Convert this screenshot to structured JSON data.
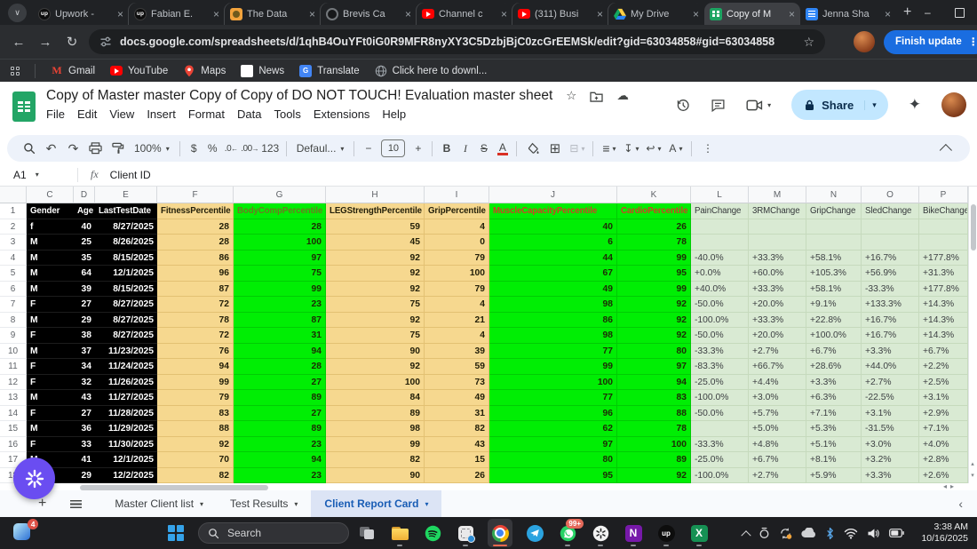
{
  "browser": {
    "tabs": [
      {
        "label": "Upwork -",
        "icon": "upwork"
      },
      {
        "label": "Fabian E.",
        "icon": "upwork"
      },
      {
        "label": "The Data",
        "icon": "emoji"
      },
      {
        "label": "Brevis Ca",
        "icon": "circle"
      },
      {
        "label": "Channel c",
        "icon": "youtube"
      },
      {
        "label": "(311) Busi",
        "icon": "youtube"
      },
      {
        "label": "My Drive",
        "icon": "drive"
      },
      {
        "label": "Copy of M",
        "icon": "sheets",
        "active": true
      },
      {
        "label": "Jenna Sha",
        "icon": "docs"
      }
    ],
    "url": "docs.google.com/spreadsheets/d/1qhB4OuYFt0iG0R9MFR8nyXY3C5DzbjBjC0zcGrEEMSk/edit?gid=63034858#gid=63034858",
    "profile_button": "Finish update",
    "bookmarks": [
      {
        "label": "Gmail",
        "icon": "gmail"
      },
      {
        "label": "YouTube",
        "icon": "youtube"
      },
      {
        "label": "Maps",
        "icon": "maps"
      },
      {
        "label": "News",
        "icon": "news"
      },
      {
        "label": "Translate",
        "icon": "translate"
      },
      {
        "label": "Click here to downl...",
        "icon": "globe"
      }
    ]
  },
  "sheet_app": {
    "doc_title": "Copy of Master master Copy of Copy of DO NOT TOUCH! Evaluation master sheet",
    "menu_items": [
      "File",
      "Edit",
      "View",
      "Insert",
      "Format",
      "Data",
      "Tools",
      "Extensions",
      "Help"
    ],
    "share_label": "Share",
    "toolbar": {
      "zoom": "100%",
      "font_name": "Defaul...",
      "font_size": "10",
      "number_format": "123"
    },
    "name_box": "A1",
    "formula_content": "Client ID",
    "sheet_tabs": [
      {
        "label": "Master Client list"
      },
      {
        "label": "Test Results"
      },
      {
        "label": "Client Report Card",
        "active": true
      }
    ]
  },
  "grid": {
    "row_numbers": [
      "1",
      "2",
      "3",
      "4",
      "5",
      "6",
      "7",
      "8",
      "9",
      "10",
      "11",
      "12",
      "13",
      "14",
      "15",
      "16",
      "17",
      "18"
    ],
    "columns": [
      {
        "letter": "C",
        "header": "Gender",
        "width": 53,
        "group": "black",
        "align": "left"
      },
      {
        "letter": "D",
        "header": "Age",
        "width": 24,
        "group": "black",
        "align": "right"
      },
      {
        "letter": "E",
        "header": "LastTestDate",
        "width": 70,
        "group": "black",
        "align": "right"
      },
      {
        "letter": "F",
        "header": "FitnessPercentile",
        "width": 86,
        "group": "tan",
        "align": "right"
      },
      {
        "letter": "G",
        "header": "BodyCompPercentile",
        "width": 104,
        "group": "green",
        "align": "right",
        "header_color": "#6d7a22"
      },
      {
        "letter": "H",
        "header": "LEGStrengthPercentile",
        "width": 111,
        "group": "tan",
        "align": "right"
      },
      {
        "letter": "I",
        "header": "GripPercentile",
        "width": 73,
        "group": "tan",
        "align": "right"
      },
      {
        "letter": "J",
        "header": "MuscleCapacityPercentile",
        "width": 144,
        "group": "green",
        "align": "right",
        "header_color": "#cc4125"
      },
      {
        "letter": "K",
        "header": "CardioPercentile",
        "width": 83,
        "group": "green",
        "align": "right",
        "header_color": "#cc4125"
      },
      {
        "letter": "L",
        "header": "PainChange",
        "width": 65,
        "group": "pct",
        "align": "left"
      },
      {
        "letter": "M",
        "header": "3RMChange",
        "width": 65,
        "group": "pct",
        "align": "left"
      },
      {
        "letter": "N",
        "header": "GripChange",
        "width": 62,
        "group": "pct",
        "align": "left"
      },
      {
        "letter": "O",
        "header": "SledChange",
        "width": 65,
        "group": "pct",
        "align": "left"
      },
      {
        "letter": "P",
        "header": "BikeChange",
        "width": 55,
        "group": "pct",
        "align": "left"
      }
    ],
    "rows": [
      [
        "f",
        "40",
        "8/27/2025",
        "28",
        "28",
        "59",
        "4",
        "40",
        "26",
        "",
        "",
        "",
        "",
        ""
      ],
      [
        "M",
        "25",
        "8/26/2025",
        "28",
        "100",
        "45",
        "0",
        "6",
        "78",
        "",
        "",
        "",
        "",
        ""
      ],
      [
        "M",
        "35",
        "8/15/2025",
        "86",
        "97",
        "92",
        "79",
        "44",
        "99",
        "-40.0%",
        "+33.3%",
        "+58.1%",
        "+16.7%",
        "+177.8%"
      ],
      [
        "M",
        "64",
        "12/1/2025",
        "96",
        "75",
        "92",
        "100",
        "67",
        "95",
        "+0.0%",
        "+60.0%",
        "+105.3%",
        "+56.9%",
        "+31.3%"
      ],
      [
        "M",
        "39",
        "8/15/2025",
        "87",
        "99",
        "92",
        "79",
        "49",
        "99",
        "+40.0%",
        "+33.3%",
        "+58.1%",
        "-33.3%",
        "+177.8%"
      ],
      [
        "F",
        "27",
        "8/27/2025",
        "72",
        "23",
        "75",
        "4",
        "98",
        "92",
        "-50.0%",
        "+20.0%",
        "+9.1%",
        "+133.3%",
        "+14.3%"
      ],
      [
        "M",
        "29",
        "8/27/2025",
        "78",
        "87",
        "92",
        "21",
        "86",
        "92",
        "-100.0%",
        "+33.3%",
        "+22.8%",
        "+16.7%",
        "+14.3%"
      ],
      [
        "F",
        "38",
        "8/27/2025",
        "72",
        "31",
        "75",
        "4",
        "98",
        "92",
        "-50.0%",
        "+20.0%",
        "+100.0%",
        "+16.7%",
        "+14.3%"
      ],
      [
        "M",
        "37",
        "11/23/2025",
        "76",
        "94",
        "90",
        "39",
        "77",
        "80",
        "-33.3%",
        "+2.7%",
        "+6.7%",
        "+3.3%",
        "+6.7%"
      ],
      [
        "F",
        "34",
        "11/24/2025",
        "94",
        "28",
        "92",
        "59",
        "99",
        "97",
        "-83.3%",
        "+66.7%",
        "+28.6%",
        "+44.0%",
        "+2.2%"
      ],
      [
        "F",
        "32",
        "11/26/2025",
        "99",
        "27",
        "100",
        "73",
        "100",
        "94",
        "-25.0%",
        "+4.4%",
        "+3.3%",
        "+2.7%",
        "+2.5%"
      ],
      [
        "M",
        "43",
        "11/27/2025",
        "79",
        "89",
        "84",
        "49",
        "77",
        "83",
        "-100.0%",
        "+3.0%",
        "+6.3%",
        "-22.5%",
        "+3.1%"
      ],
      [
        "F",
        "27",
        "11/28/2025",
        "83",
        "27",
        "89",
        "31",
        "96",
        "88",
        "-50.0%",
        "+5.7%",
        "+7.1%",
        "+3.1%",
        "+2.9%"
      ],
      [
        "M",
        "36",
        "11/29/2025",
        "88",
        "89",
        "98",
        "82",
        "62",
        "78",
        "",
        "+5.0%",
        "+5.3%",
        "-31.5%",
        "+7.1%"
      ],
      [
        "F",
        "33",
        "11/30/2025",
        "92",
        "23",
        "99",
        "43",
        "97",
        "100",
        "-33.3%",
        "+4.8%",
        "+5.1%",
        "+3.0%",
        "+4.0%"
      ],
      [
        "M",
        "41",
        "12/1/2025",
        "70",
        "94",
        "82",
        "15",
        "80",
        "89",
        "-25.0%",
        "+6.7%",
        "+8.1%",
        "+3.2%",
        "+2.8%"
      ],
      [
        "M",
        "29",
        "12/2/2025",
        "82",
        "23",
        "90",
        "26",
        "95",
        "92",
        "-100.0%",
        "+2.7%",
        "+5.9%",
        "+3.3%",
        "+2.6%"
      ]
    ]
  },
  "taskbar": {
    "search_placeholder": "Search",
    "notification_badge": "4",
    "apps": [
      {
        "name": "task-view"
      },
      {
        "name": "file-explorer",
        "indicator": true
      },
      {
        "name": "spotify"
      },
      {
        "name": "snipping-tool",
        "indicator": true
      },
      {
        "name": "chrome",
        "active": true
      },
      {
        "name": "telegram"
      },
      {
        "name": "whatsapp",
        "indicator": true,
        "badge": "99+"
      },
      {
        "name": "chatgpt",
        "indicator": true
      },
      {
        "name": "onenote",
        "indicator": true
      },
      {
        "name": "upwork",
        "indicator": true
      },
      {
        "name": "excel",
        "indicator": true
      }
    ],
    "time": "3:38 AM",
    "date": "10/16/2025"
  },
  "icon_glyphs": {
    "tab_search": "∨",
    "new_tab": "+",
    "minimize": "–",
    "close": "×",
    "back": "←",
    "forward": "→",
    "reload": "↻",
    "bookmark_star": "☆",
    "overflow_dots": "⋮",
    "doc_star": "☆",
    "doc_cloud": "☁",
    "sparkle": "✦",
    "undo": "↶",
    "redo": "↷",
    "currency": "$",
    "percent": "%",
    "num123": "123",
    "minus": "−",
    "plus": "+",
    "bold": "B",
    "italic": "I",
    "strike": "S",
    "text_color": "A",
    "borders": "⊞",
    "merge": "⊟",
    "align": "≡",
    "valign": "↧",
    "wrap": "↩",
    "rotate": "A",
    "caret": "▾",
    "more": "⋮",
    "fx": "fx",
    "sheet_prev": "‹",
    "scroll_up": "▴",
    "scroll_down": "▾",
    "scroll_left": "◂",
    "scroll_right": "▸"
  },
  "colors": {
    "tab_active_bg": "#3e4044",
    "update_button": "#1a6de0",
    "share_bg": "#c2e7ff",
    "cell_black": "#000000",
    "cell_tan": "#f6d88f",
    "cell_green": "#00ee04",
    "cell_lightgreen": "#d9ead3",
    "active_sheet_tab_bg": "#dce4f5",
    "active_sheet_tab_text": "#195db5",
    "fab_purple": "#6a4df1"
  }
}
